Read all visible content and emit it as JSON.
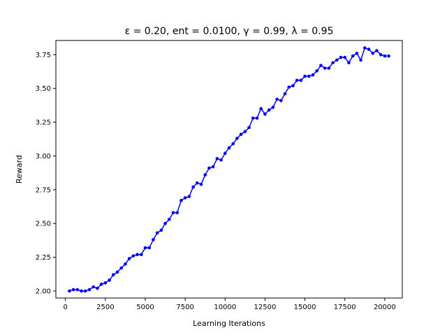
{
  "chart_data": {
    "type": "line",
    "title": "ε = 0.20, ent = 0.0100, γ = 0.99, λ = 0.95",
    "xlabel": "Learning Iterations",
    "ylabel": "Reward",
    "xlim": [
      -600,
      21100
    ],
    "ylim": [
      1.948,
      3.855
    ],
    "xticks": [
      0,
      2500,
      5000,
      7500,
      10000,
      12500,
      15000,
      17500,
      20000
    ],
    "yticks": [
      2.0,
      2.25,
      2.5,
      2.75,
      3.0,
      3.25,
      3.5,
      3.75
    ],
    "ytick_labels": [
      "2.00",
      "2.25",
      "2.50",
      "2.75",
      "3.00",
      "3.25",
      "3.50",
      "3.75"
    ],
    "grid": false,
    "series": [
      {
        "color": "#0000ff",
        "marker": "circle",
        "x": [
          250,
          500,
          750,
          1000,
          1250,
          1500,
          1750,
          2000,
          2250,
          2500,
          2750,
          3000,
          3250,
          3500,
          3750,
          4000,
          4250,
          4500,
          4750,
          5000,
          5250,
          5500,
          5750,
          6000,
          6250,
          6500,
          6750,
          7000,
          7250,
          7500,
          7750,
          8000,
          8250,
          8500,
          8750,
          9000,
          9250,
          9500,
          9750,
          10000,
          10250,
          10500,
          10750,
          11000,
          11250,
          11500,
          11750,
          12000,
          12250,
          12500,
          12750,
          13000,
          13250,
          13500,
          13750,
          14000,
          14250,
          14500,
          14750,
          15000,
          15250,
          15500,
          15750,
          16000,
          16250,
          16500,
          16750,
          17000,
          17250,
          17500,
          17750,
          18000,
          18250,
          18500,
          18750,
          19000,
          19250,
          19500,
          19750,
          20000,
          20250
        ],
        "y": [
          2.0,
          2.01,
          2.01,
          2.0,
          2.0,
          2.01,
          2.03,
          2.02,
          2.05,
          2.06,
          2.08,
          2.12,
          2.14,
          2.17,
          2.2,
          2.24,
          2.26,
          2.27,
          2.27,
          2.32,
          2.32,
          2.38,
          2.43,
          2.45,
          2.5,
          2.53,
          2.58,
          2.58,
          2.67,
          2.69,
          2.7,
          2.77,
          2.8,
          2.79,
          2.86,
          2.91,
          2.92,
          2.98,
          2.97,
          3.02,
          3.06,
          3.09,
          3.13,
          3.16,
          3.18,
          3.21,
          3.28,
          3.28,
          3.35,
          3.31,
          3.34,
          3.36,
          3.42,
          3.41,
          3.46,
          3.51,
          3.52,
          3.56,
          3.56,
          3.59,
          3.59,
          3.6,
          3.63,
          3.67,
          3.65,
          3.65,
          3.69,
          3.71,
          3.73,
          3.73,
          3.69,
          3.74,
          3.76,
          3.71,
          3.8,
          3.79,
          3.76,
          3.78,
          3.75,
          3.74,
          3.74
        ]
      }
    ]
  }
}
